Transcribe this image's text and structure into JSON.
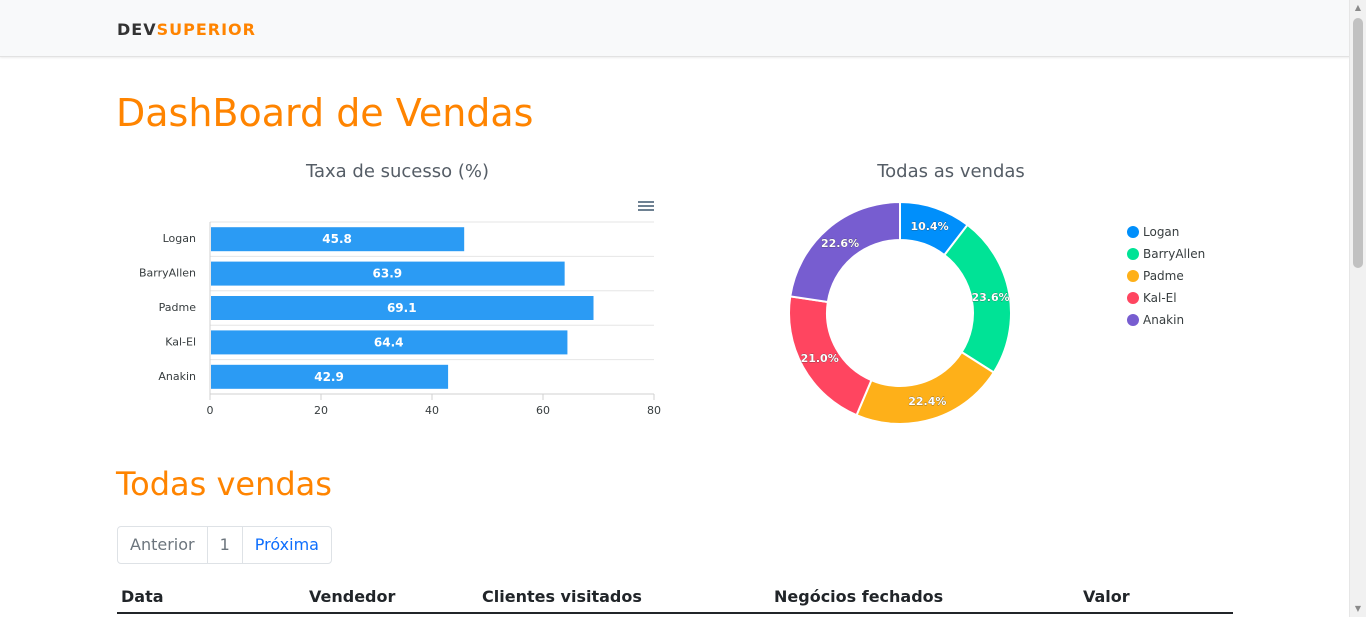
{
  "brand": {
    "part1": "DEV",
    "part2": "SUPERIOR"
  },
  "page_title": "DashBoard de Vendas",
  "bar_chart_title": "Taxa de sucesso (%)",
  "donut_chart_title": "Todas as vendas",
  "section_title": "Todas vendas",
  "pagination": {
    "previous": "Anterior",
    "current": "1",
    "next": "Próxima"
  },
  "table": {
    "headers": [
      "Data",
      "Vendedor",
      "Clientes visitados",
      "Negócios fechados",
      "Valor"
    ]
  },
  "icons": {
    "chart_menu": "hamburger-menu-icon"
  },
  "colors": {
    "brand_orange": "#ff8400",
    "bar_blue": "#2b9bf4",
    "series": [
      "#008ffb",
      "#00e396",
      "#feb019",
      "#ff4560",
      "#775dd0"
    ]
  },
  "chart_data": [
    {
      "type": "bar",
      "orientation": "horizontal",
      "title": "Taxa de sucesso (%)",
      "categories": [
        "Logan",
        "BarryAllen",
        "Padme",
        "Kal-El",
        "Anakin"
      ],
      "values": [
        45.8,
        63.9,
        69.1,
        64.4,
        42.9
      ],
      "xlim": [
        0,
        80
      ],
      "xticks": [
        0,
        20,
        40,
        60,
        80
      ],
      "grid": true
    },
    {
      "type": "pie",
      "variant": "donut",
      "title": "Todas as vendas",
      "labels": [
        "Logan",
        "BarryAllen",
        "Padme",
        "Kal-El",
        "Anakin"
      ],
      "values": [
        10.4,
        23.6,
        22.4,
        21.0,
        22.6
      ],
      "value_labels": [
        "10.4%",
        "23.6%",
        "22.4%",
        "21.0%",
        "22.6%"
      ],
      "legend_position": "right"
    }
  ]
}
